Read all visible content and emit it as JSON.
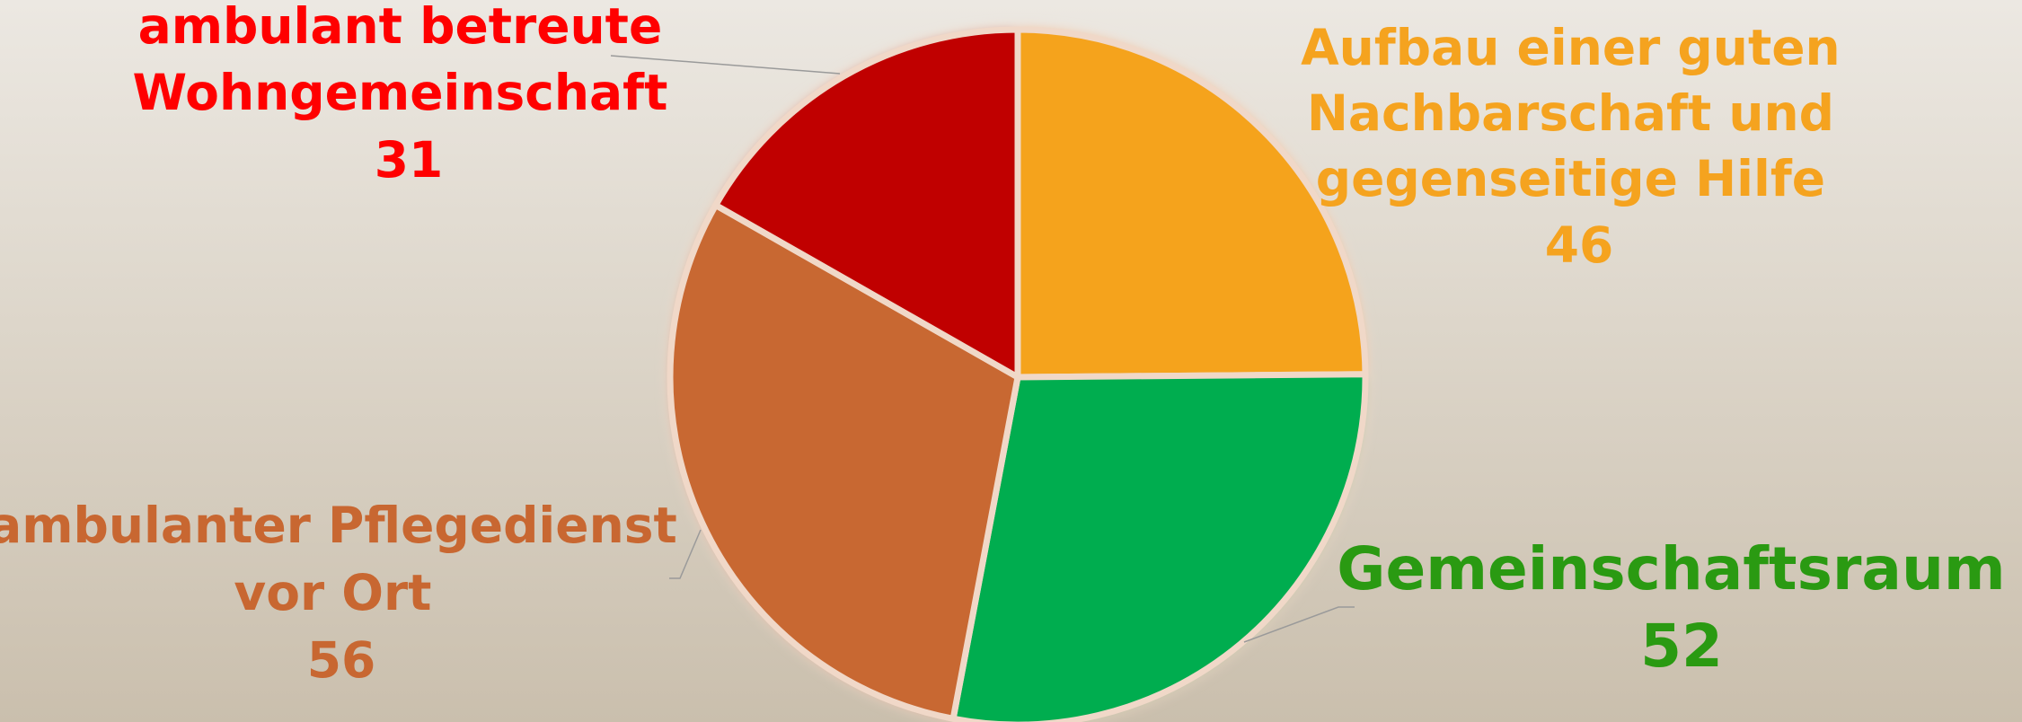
{
  "chart_data": {
    "type": "pie",
    "start_angle_deg": 0,
    "direction": "clockwise",
    "slices": [
      {
        "label_lines": [
          "Aufbau einer guten",
          "Nachbarschaft und",
          "gegenseitige Hilfe"
        ],
        "value": 46,
        "color": "#f5a31f",
        "label_color": "#f5a31f"
      },
      {
        "label_lines": [
          "Gemeinschaftsraum"
        ],
        "value": 52,
        "color": "#00ad4f",
        "label_color": "#2a9a12"
      },
      {
        "label_lines": [
          "ambulanter Pflegedienst",
          "vor Ort"
        ],
        "value": 56,
        "color": "#c86731",
        "label_color": "#c86731"
      },
      {
        "label_lines": [
          "ambulant betreute",
          "Wohngemeinschaft"
        ],
        "value": 31,
        "color": "#c00000",
        "label_color": "#ff0000"
      }
    ]
  }
}
